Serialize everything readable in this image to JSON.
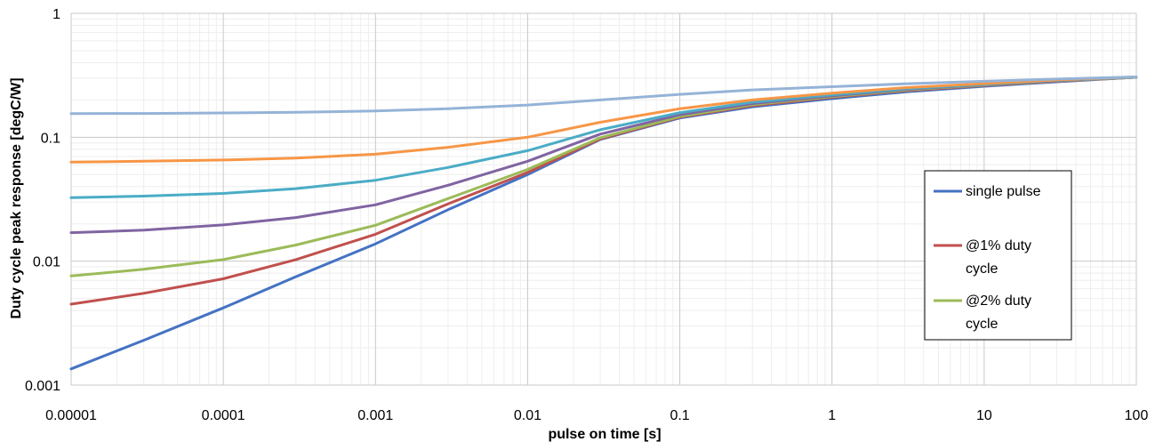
{
  "chart_data": {
    "type": "line",
    "title": "",
    "xlabel": "pulse on time [s]",
    "ylabel": "Duty cycle peak response [degC/W]",
    "x_scale": "log",
    "y_scale": "log",
    "xlim": [
      1e-05,
      100
    ],
    "ylim": [
      0.001,
      1
    ],
    "grid": true,
    "legend_position": "right",
    "x_ticks": [
      {
        "value": 1e-05,
        "label": "0.00001"
      },
      {
        "value": 0.0001,
        "label": "0.0001"
      },
      {
        "value": 0.001,
        "label": "0.001"
      },
      {
        "value": 0.01,
        "label": "0.01"
      },
      {
        "value": 0.1,
        "label": "0.1"
      },
      {
        "value": 1,
        "label": "1"
      },
      {
        "value": 10,
        "label": "10"
      },
      {
        "value": 100,
        "label": "100"
      }
    ],
    "y_ticks": [
      {
        "value": 0.001,
        "label": "0.001"
      },
      {
        "value": 0.01,
        "label": "0.01"
      },
      {
        "value": 0.1,
        "label": "0.1"
      },
      {
        "value": 1,
        "label": "1"
      }
    ],
    "series": [
      {
        "name": "single pulse",
        "color": "#4472C4",
        "in_legend": true,
        "x": [
          1e-05,
          3e-05,
          0.0001,
          0.0003,
          0.001,
          0.003,
          0.01,
          0.03,
          0.1,
          0.3,
          1,
          3,
          10,
          30,
          100
        ],
        "y": [
          0.00135,
          0.0023,
          0.0042,
          0.0075,
          0.0138,
          0.026,
          0.05,
          0.096,
          0.143,
          0.176,
          0.205,
          0.232,
          0.258,
          0.28,
          0.305
        ]
      },
      {
        "name": "@1% duty cycle",
        "color": "#C0504D",
        "in_legend": true,
        "x": [
          1e-05,
          3e-05,
          0.0001,
          0.0003,
          0.001,
          0.003,
          0.01,
          0.03,
          0.1,
          0.3,
          1,
          3,
          10,
          30,
          100
        ],
        "y": [
          0.0045,
          0.0055,
          0.0072,
          0.0103,
          0.0165,
          0.029,
          0.052,
          0.097,
          0.145,
          0.18,
          0.21,
          0.237,
          0.262,
          0.283,
          0.305
        ]
      },
      {
        "name": "@2% duty cycle",
        "color": "#9BBB59",
        "in_legend": true,
        "x": [
          1e-05,
          3e-05,
          0.0001,
          0.0003,
          0.001,
          0.003,
          0.01,
          0.03,
          0.1,
          0.3,
          1,
          3,
          10,
          30,
          100
        ],
        "y": [
          0.0076,
          0.0086,
          0.0103,
          0.0135,
          0.0195,
          0.032,
          0.055,
          0.099,
          0.147,
          0.183,
          0.213,
          0.24,
          0.264,
          0.285,
          0.305
        ]
      },
      {
        "name": "",
        "color": "#8064A2",
        "in_legend": false,
        "x": [
          1e-05,
          3e-05,
          0.0001,
          0.0003,
          0.001,
          0.003,
          0.01,
          0.03,
          0.1,
          0.3,
          1,
          3,
          10,
          30,
          100
        ],
        "y": [
          0.017,
          0.0178,
          0.0196,
          0.0225,
          0.0285,
          0.041,
          0.064,
          0.106,
          0.152,
          0.187,
          0.216,
          0.243,
          0.266,
          0.286,
          0.306
        ]
      },
      {
        "name": "",
        "color": "#4BACC6",
        "in_legend": false,
        "x": [
          1e-05,
          3e-05,
          0.0001,
          0.0003,
          0.001,
          0.003,
          0.01,
          0.03,
          0.1,
          0.3,
          1,
          3,
          10,
          30,
          100
        ],
        "y": [
          0.0325,
          0.0335,
          0.0352,
          0.0385,
          0.045,
          0.057,
          0.078,
          0.115,
          0.158,
          0.192,
          0.22,
          0.246,
          0.268,
          0.288,
          0.306
        ]
      },
      {
        "name": "",
        "color": "#F79646",
        "in_legend": false,
        "x": [
          1e-05,
          3e-05,
          0.0001,
          0.0003,
          0.001,
          0.003,
          0.01,
          0.03,
          0.1,
          0.3,
          1,
          3,
          10,
          30,
          100
        ],
        "y": [
          0.063,
          0.064,
          0.0655,
          0.068,
          0.073,
          0.083,
          0.1,
          0.132,
          0.17,
          0.2,
          0.227,
          0.251,
          0.271,
          0.29,
          0.307
        ]
      },
      {
        "name": "",
        "color": "#95B3D7",
        "in_legend": false,
        "x": [
          1e-05,
          3e-05,
          0.0001,
          0.0003,
          0.001,
          0.003,
          0.01,
          0.03,
          0.1,
          0.3,
          1,
          3,
          10,
          30,
          100
        ],
        "y": [
          0.155,
          0.1555,
          0.157,
          0.159,
          0.163,
          0.17,
          0.182,
          0.2,
          0.222,
          0.241,
          0.256,
          0.27,
          0.283,
          0.295,
          0.307
        ]
      }
    ]
  }
}
